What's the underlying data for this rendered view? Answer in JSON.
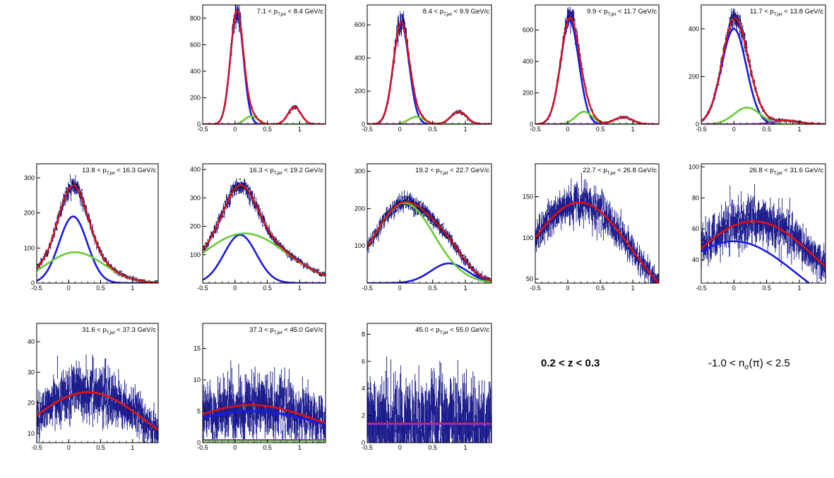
{
  "figure": {
    "label_z": "0.2 < z < 0.3",
    "label_nsigma_pre": "-1.0 < n",
    "label_nsigma_sub": "σ",
    "label_nsigma_post": "(π) < 2.5"
  },
  "colors": {
    "data": "#1a1a8c",
    "total_fit": "#e01010",
    "pion": "#1a1ae6",
    "kaon": "#66cc33",
    "proton": "#9933cc",
    "axis": "#000000"
  },
  "chart_data": [
    {
      "type": "line",
      "title_pre": "7.1 < p",
      "title_sub": "T,jet",
      "title_post": " < 8.4 GeV/c",
      "xlim": [
        -0.5,
        1.4
      ],
      "ylim": [
        0,
        900
      ],
      "yticks": [
        0,
        200,
        400,
        600,
        800
      ],
      "xticks": [
        -0.5,
        0,
        0.5,
        1
      ],
      "series": [
        {
          "role": "pion",
          "amp": 850,
          "mu": 0.03,
          "sigma": 0.1
        },
        {
          "role": "kaon",
          "amp": 60,
          "mu": 0.25,
          "sigma": 0.1
        },
        {
          "role": "proton",
          "amp": 130,
          "mu": 0.92,
          "sigma": 0.1
        }
      ],
      "noise": 0.12,
      "noise_abs": 4
    },
    {
      "type": "line",
      "title_pre": "8.4 < p",
      "title_sub": "T,jet",
      "title_post": " < 9.9 GeV/c",
      "xlim": [
        -0.5,
        1.4
      ],
      "ylim": [
        0,
        720
      ],
      "yticks": [
        0,
        200,
        400,
        600
      ],
      "xticks": [
        -0.5,
        0,
        0.5,
        1
      ],
      "series": [
        {
          "role": "pion",
          "amp": 610,
          "mu": 0.02,
          "sigma": 0.12
        },
        {
          "role": "kaon",
          "amp": 45,
          "mu": 0.25,
          "sigma": 0.12
        },
        {
          "role": "proton",
          "amp": 75,
          "mu": 0.9,
          "sigma": 0.12
        }
      ],
      "noise": 0.12,
      "noise_abs": 4
    },
    {
      "type": "line",
      "title_pre": "9.9 < p",
      "title_sub": "T,jet",
      "title_post": " < 11.7 GeV/c",
      "xlim": [
        -0.5,
        1.4
      ],
      "ylim": [
        0,
        760
      ],
      "yticks": [
        0,
        200,
        400,
        600
      ],
      "xticks": [
        -0.5,
        0,
        0.5,
        1
      ],
      "series": [
        {
          "role": "pion",
          "amp": 660,
          "mu": 0.03,
          "sigma": 0.14
        },
        {
          "role": "kaon",
          "amp": 80,
          "mu": 0.25,
          "sigma": 0.13
        },
        {
          "role": "proton",
          "amp": 45,
          "mu": 0.85,
          "sigma": 0.14
        }
      ],
      "noise": 0.12,
      "noise_abs": 4
    },
    {
      "type": "line",
      "title_pre": "11.7 < p",
      "title_sub": "T,jet",
      "title_post": " < 13.8 GeV/c",
      "xlim": [
        -0.5,
        1.4
      ],
      "ylim": [
        0,
        500
      ],
      "yticks": [
        0,
        200,
        400
      ],
      "xticks": [
        -0.5,
        0,
        0.5,
        1
      ],
      "series": [
        {
          "role": "pion",
          "amp": 400,
          "mu": 0.0,
          "sigma": 0.19
        },
        {
          "role": "kaon",
          "amp": 70,
          "mu": 0.2,
          "sigma": 0.2
        },
        {
          "role": "proton",
          "amp": 15,
          "mu": 0.8,
          "sigma": 0.2
        }
      ],
      "noise": 0.1,
      "noise_abs": 4
    },
    {
      "type": "line",
      "title_pre": "13.8 < p",
      "title_sub": "T,jet",
      "title_post": " < 16.3 GeV/c",
      "xlim": [
        -0.5,
        1.4
      ],
      "ylim": [
        0,
        340
      ],
      "yticks": [
        0,
        100,
        200,
        300
      ],
      "xticks": [
        -0.5,
        0,
        0.5,
        1
      ],
      "series": [
        {
          "role": "pion",
          "amp": 190,
          "mu": 0.07,
          "sigma": 0.22
        },
        {
          "role": "kaon",
          "amp": 88,
          "mu": 0.1,
          "sigma": 0.45
        },
        {
          "role": "proton",
          "amp": 0,
          "mu": 0.8,
          "sigma": 0.3
        }
      ],
      "noise": 0.08,
      "noise_abs": 4
    },
    {
      "type": "line",
      "title_pre": "16.3 < p",
      "title_sub": "T,jet",
      "title_post": " < 19.2 GeV/c",
      "xlim": [
        -0.5,
        1.4
      ],
      "ylim": [
        0,
        420
      ],
      "yticks": [
        100,
        200,
        300,
        400
      ],
      "xticks": [
        -0.5,
        0,
        0.5,
        1
      ],
      "series": [
        {
          "role": "pion",
          "amp": 170,
          "mu": 0.08,
          "sigma": 0.25
        },
        {
          "role": "kaon",
          "amp": 175,
          "mu": 0.15,
          "sigma": 0.65
        },
        {
          "role": "proton",
          "amp": 0,
          "mu": 0.8,
          "sigma": 0.3
        }
      ],
      "noise": 0.07,
      "noise_abs": 5
    },
    {
      "type": "line",
      "title_pre": "19.2 < p",
      "title_sub": "T,jet",
      "title_post": " < 22.7 GeV/c",
      "xlim": [
        -0.5,
        1.4
      ],
      "ylim": [
        0,
        320
      ],
      "yticks": [
        100,
        200,
        300
      ],
      "xticks": [
        -0.5,
        0,
        0.5,
        1
      ],
      "series": [
        {
          "role": "pion",
          "amp": 53,
          "mu": 0.75,
          "sigma": 0.28
        },
        {
          "role": "kaon",
          "amp": 215,
          "mu": 0.07,
          "sigma": 0.45
        },
        {
          "role": "proton",
          "amp": 0,
          "mu": 0.8,
          "sigma": 0.3
        }
      ],
      "noise": 0.08,
      "noise_abs": 6
    },
    {
      "type": "line",
      "title_pre": "22.7 < p",
      "title_sub": "T,jet",
      "title_post": " < 26.8 GeV/c",
      "xlim": [
        -0.5,
        1.4
      ],
      "ylim": [
        45,
        190
      ],
      "yticks": [
        50,
        100,
        150
      ],
      "xticks": [
        -0.5,
        0,
        0.5,
        1
      ],
      "series": [
        {
          "role": "total",
          "amp": 143,
          "mu": 0.18,
          "sigma": 0.8
        }
      ],
      "noise": 0.12,
      "noise_abs": 6
    },
    {
      "type": "line",
      "title_pre": "26.8 < p",
      "title_sub": "T,jet",
      "title_post": " < 31.6 GeV/c",
      "xlim": [
        -0.5,
        1.4
      ],
      "ylim": [
        25,
        102
      ],
      "yticks": [
        40,
        60,
        80,
        100
      ],
      "xticks": [
        -0.5,
        0,
        0.5,
        1
      ],
      "series": [
        {
          "role": "total",
          "amp": 65,
          "mu": 0.3,
          "sigma": 1.0
        },
        {
          "role": "pion",
          "amp": 52,
          "mu": 0.0,
          "sigma": 0.95
        }
      ],
      "noise": 0.16,
      "noise_abs": 4
    },
    {
      "type": "line",
      "title_pre": "31.6 < p",
      "title_sub": "T,jet",
      "title_post": " < 37.3 GeV/c",
      "xlim": [
        -0.5,
        1.4
      ],
      "ylim": [
        7,
        46
      ],
      "yticks": [
        10,
        20,
        30,
        40
      ],
      "xticks": [
        -0.5,
        0,
        0.5,
        1
      ],
      "series": [
        {
          "role": "total",
          "amp": 23.5,
          "mu": 0.3,
          "sigma": 0.9
        }
      ],
      "noise": 0.28,
      "noise_abs": 2
    },
    {
      "type": "line",
      "title_pre": "37.3 < p",
      "title_sub": "T,jet",
      "title_post": " < 45.0 GeV/c",
      "xlim": [
        -0.5,
        1.4
      ],
      "ylim": [
        0,
        19
      ],
      "yticks": [
        0,
        5,
        10,
        15
      ],
      "xticks": [
        -0.5,
        0,
        0.5,
        1
      ],
      "series": [
        {
          "role": "total",
          "amp": 6.0,
          "mu": 0.25,
          "sigma": 1.0
        },
        {
          "role": "pion",
          "amp": 5.0,
          "mu": 0.25,
          "sigma": 1.1
        }
      ],
      "noise": 0.55,
      "noise_abs": 1.5
    },
    {
      "type": "line",
      "title_pre": "45.0 < p",
      "title_sub": "T,jet",
      "title_post": " < 55.0 GeV/c",
      "xlim": [
        -0.5,
        1.4
      ],
      "ylim": [
        0,
        8.8
      ],
      "yticks": [
        0,
        2,
        4,
        6,
        8
      ],
      "xticks": [
        -0.5,
        0,
        0.5,
        1
      ],
      "series": [
        {
          "role": "flat",
          "amp": 1.4,
          "mu": 0.0,
          "sigma": 100
        }
      ],
      "noise": 1.2,
      "noise_abs": 1.3
    }
  ]
}
